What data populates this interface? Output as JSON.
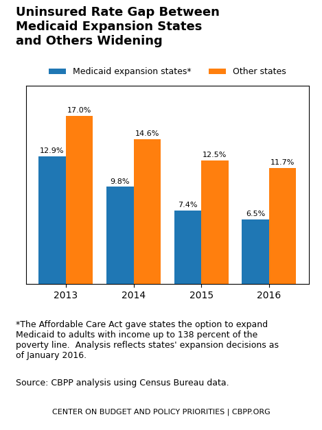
{
  "chart_data": {
    "type": "bar",
    "title": "Uninsured Rate Gap Between\nMedicaid Expansion States\nand Others Widening",
    "categories": [
      "2013",
      "2014",
      "2015",
      "2016"
    ],
    "series": [
      {
        "name": "Medicaid expansion states*",
        "values": [
          12.9,
          9.8,
          7.4,
          6.5
        ],
        "value_labels": [
          "12.9%",
          "9.8%",
          "7.4%",
          "6.5%"
        ]
      },
      {
        "name": "Other states",
        "values": [
          17.0,
          14.6,
          12.5,
          11.7
        ],
        "value_labels": [
          "17.0%",
          "14.6%",
          "12.5%",
          "11.7%"
        ]
      }
    ],
    "ylim": [
      0,
      20
    ],
    "tick_labels": "x",
    "data_labels": true,
    "legend": "lower center",
    "annotations": [
      "*The Affordable Care Act gave states the option to expand\nMedicaid to adults with income up to 138 percent of the\npoverty line.  Analysis reflects states' expansion decisions as\nof January 2016.",
      "Source: CBPP analysis using Census Bureau data.",
      "CENTER ON BUDGET AND POLICY PRIORITIES | CBPP.ORG"
    ]
  }
}
